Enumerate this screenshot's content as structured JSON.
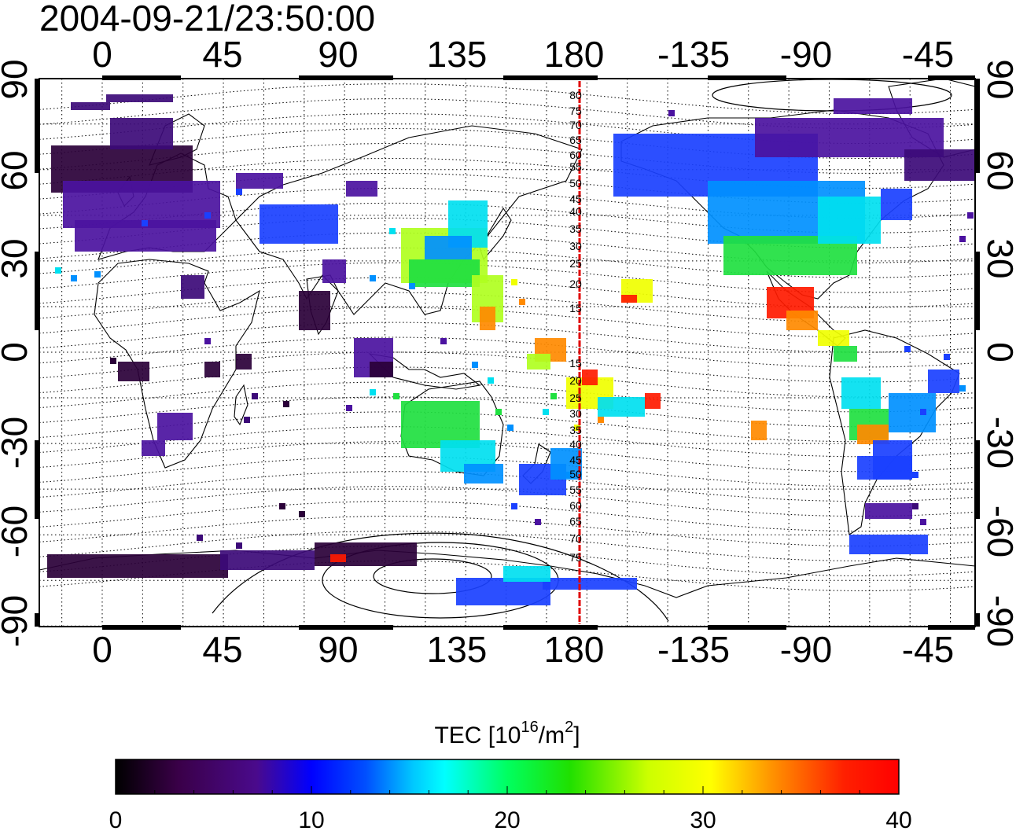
{
  "title": "2004-09-21/23:50:00",
  "colorbar": {
    "label_main": "TEC  [10",
    "label_sup": "16",
    "label_mid": "/m",
    "label_sup2": "2",
    "label_end": "]",
    "min": 0,
    "max": 40,
    "ticks": [
      "0",
      "10",
      "20",
      "30",
      "40"
    ]
  },
  "axes": {
    "lon_ticks": [
      "0",
      "45",
      "90",
      "135",
      "180",
      "-135",
      "-90",
      "-45"
    ],
    "lat_ticks": [
      "90",
      "60",
      "30",
      "0",
      "-30",
      "-60",
      "-90"
    ]
  },
  "meridian_labels": {
    "north": [
      "80",
      "75",
      "70",
      "65",
      "60",
      "55",
      "50",
      "45",
      "40",
      "35",
      "30",
      "25",
      "20",
      "15"
    ],
    "south": [
      "15",
      "20",
      "25",
      "30",
      "35",
      "40",
      "45",
      "50",
      "55",
      "60",
      "65",
      "70",
      "75"
    ]
  },
  "colors": {
    "meridian": "#e00000",
    "frame": "#000000"
  }
}
